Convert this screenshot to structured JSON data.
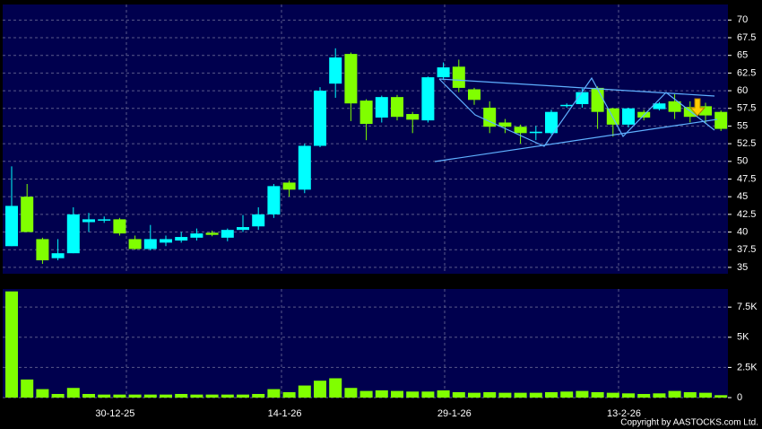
{
  "chart_data": [
    {
      "type": "candlestick",
      "up_color": "#00ffff",
      "down_color": "#80ff00",
      "open": [
        38,
        45,
        39,
        36.3,
        37,
        41.4,
        41.7,
        41.8,
        39,
        37.6,
        38.5,
        38.8,
        39.2,
        39.9,
        39.2,
        40.3,
        40.8,
        42.5,
        47,
        46,
        52.2,
        61,
        65.2,
        58.6,
        56.2,
        59.1,
        56.7,
        55.8,
        61.9,
        63.4,
        60.2,
        57.6,
        55.5,
        54.9,
        54,
        54,
        57.9,
        58.1,
        60.4,
        57.5,
        55.2,
        57,
        57.4,
        58.5,
        57.7,
        57.8,
        57
      ],
      "high": [
        49.3,
        46.8,
        39.2,
        39,
        43.5,
        42.7,
        42.2,
        42,
        39.5,
        41,
        39.5,
        40,
        40.5,
        40.2,
        40.5,
        42.4,
        43.5,
        46.8,
        47.3,
        52.5,
        60.5,
        66,
        65.4,
        58.8,
        59.3,
        59.4,
        57,
        62,
        64,
        64.4,
        60.4,
        58.5,
        56,
        55.2,
        55,
        57.3,
        58.2,
        60.3,
        60.6,
        57.6,
        57.6,
        57.3,
        58.4,
        59.5,
        58.5,
        58.3,
        57.2
      ],
      "low": [
        38,
        40,
        35.5,
        36,
        37,
        40,
        41.3,
        39.5,
        37.5,
        37.4,
        38,
        38.5,
        38.8,
        39.4,
        38.7,
        40,
        40.3,
        42,
        45,
        45.5,
        52,
        59,
        55.7,
        53,
        55.5,
        55.8,
        54,
        55.5,
        61.5,
        59.8,
        58,
        54,
        54,
        52.5,
        53,
        53.8,
        57.6,
        57.6,
        54.6,
        53.5,
        54.8,
        55.8,
        57.2,
        56,
        55.5,
        55.4,
        54.3
      ],
      "close": [
        43.7,
        40,
        36,
        37,
        42.5,
        41.8,
        41.8,
        39.8,
        37.6,
        39,
        39,
        39.3,
        39.8,
        39.6,
        40.3,
        40.7,
        42.5,
        46.5,
        46,
        52.2,
        60,
        64.7,
        58.2,
        55.3,
        59.1,
        56.3,
        55.9,
        61.9,
        63.3,
        60.4,
        58.7,
        54.9,
        54.9,
        54,
        54.2,
        57,
        58,
        59.8,
        57,
        55.2,
        57.5,
        56.2,
        58.2,
        57,
        56.3,
        56.5,
        54.6
      ],
      "ylim": [
        34.1,
        72.2
      ],
      "yticks": [
        35,
        37.5,
        40,
        42.5,
        45,
        47.5,
        50,
        52.5,
        55,
        57.5,
        60,
        62.5,
        65,
        67.5,
        70
      ]
    },
    {
      "type": "bar",
      "color": "#80ff00",
      "categories": [
        null,
        null,
        null,
        null,
        null,
        null,
        null,
        "30-12-25",
        null,
        null,
        null,
        null,
        null,
        null,
        null,
        null,
        null,
        null,
        "14-1-26",
        null,
        null,
        null,
        null,
        null,
        null,
        null,
        null,
        null,
        null,
        "29-1-26",
        null,
        null,
        null,
        null,
        null,
        null,
        null,
        null,
        null,
        null,
        "13-2-26",
        null,
        null,
        null,
        null,
        null,
        null
      ],
      "values": [
        8800,
        1500,
        700,
        300,
        800,
        300,
        250,
        250,
        250,
        250,
        250,
        300,
        250,
        250,
        250,
        250,
        300,
        700,
        450,
        1000,
        1400,
        1600,
        800,
        550,
        600,
        550,
        500,
        500,
        600,
        450,
        400,
        450,
        400,
        400,
        400,
        450,
        500,
        550,
        450,
        400,
        350,
        300,
        350,
        550,
        450,
        400,
        200
      ],
      "ylim": [
        0,
        9000
      ],
      "yticks": [
        0,
        {
          "value": 2500,
          "label": "2.5K"
        },
        {
          "value": 5000,
          "label": "5K"
        },
        {
          "value": 7500,
          "label": "7.5K"
        }
      ]
    }
  ],
  "footer": "Copyright by AASTOCKS.com Ltd."
}
